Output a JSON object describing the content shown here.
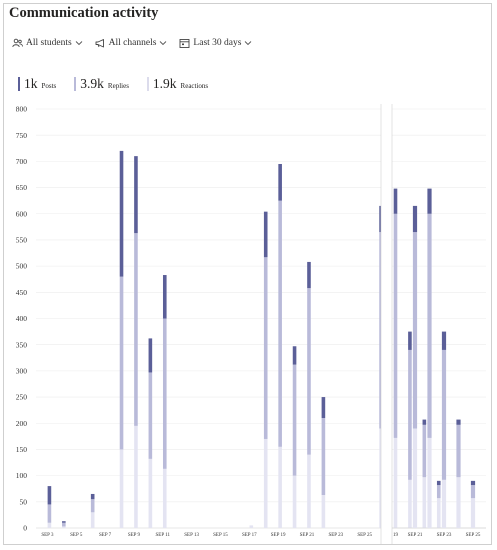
{
  "header": {
    "title": "Communication activity"
  },
  "filters": {
    "students": {
      "label": "All students",
      "icon": "people-icon"
    },
    "channels": {
      "label": "All channels",
      "icon": "megaphone-icon"
    },
    "period": {
      "label": "Last 30 days",
      "icon": "calendar-icon"
    }
  },
  "legend": {
    "posts": {
      "value": "1k",
      "label": "Posts",
      "color": "#5b5f98"
    },
    "replies": {
      "value": "3.9k",
      "label": "Replies",
      "color": "#b9bad9"
    },
    "reactions": {
      "value": "1.9k",
      "label": "Reactions",
      "color": "#e4e4f2"
    }
  },
  "chart_data": {
    "type": "bar",
    "stacked": true,
    "ylim": [
      0,
      800
    ],
    "yticks": [
      0,
      50,
      100,
      150,
      200,
      250,
      300,
      350,
      400,
      450,
      500,
      550,
      600,
      650,
      700,
      750,
      800
    ],
    "grid": true,
    "x_tick_labels": [
      "SEP 3",
      "SEP 5",
      "SEP 7",
      "SEP 9",
      "SEP 11",
      "SEP 13",
      "SEP 15",
      "SEP 17",
      "SEP 19",
      "SEP 21",
      "SEP 23",
      "SEP 25"
    ],
    "series": [
      {
        "name": "Reactions",
        "color": "#e4e4f2",
        "values": [
          0,
          10,
          3,
          0,
          30,
          0,
          150,
          195,
          132,
          113,
          0,
          0,
          0,
          0,
          0,
          5,
          170,
          155,
          100,
          140,
          63,
          0,
          0,
          0,
          190,
          172,
          92,
          97,
          57
        ]
      },
      {
        "name": "Replies",
        "color": "#b9bad9",
        "values": [
          0,
          35,
          7,
          0,
          25,
          0,
          330,
          368,
          165,
          287,
          0,
          0,
          0,
          0,
          0,
          0,
          347,
          470,
          212,
          318,
          147,
          0,
          0,
          0,
          375,
          428,
          248,
          100,
          25
        ]
      },
      {
        "name": "Posts",
        "color": "#5b5f98",
        "values": [
          0,
          35,
          3,
          0,
          10,
          0,
          240,
          147,
          65,
          83,
          0,
          0,
          0,
          0,
          0,
          0,
          87,
          70,
          35,
          50,
          40,
          0,
          0,
          0,
          50,
          48,
          35,
          10,
          8
        ]
      }
    ]
  },
  "zoom_panel": {
    "x_tick_labels": [
      "19",
      "SEP 21",
      "SEP 23",
      "SEP 25"
    ],
    "bars": [
      {
        "reactions": 190,
        "replies": 375,
        "posts": 50
      },
      {
        "reactions": 172,
        "replies": 428,
        "posts": 48
      },
      {
        "reactions": 92,
        "replies": 248,
        "posts": 35
      },
      {
        "reactions": 97,
        "replies": 100,
        "posts": 10
      },
      {
        "reactions": 57,
        "replies": 25,
        "posts": 8
      }
    ]
  }
}
